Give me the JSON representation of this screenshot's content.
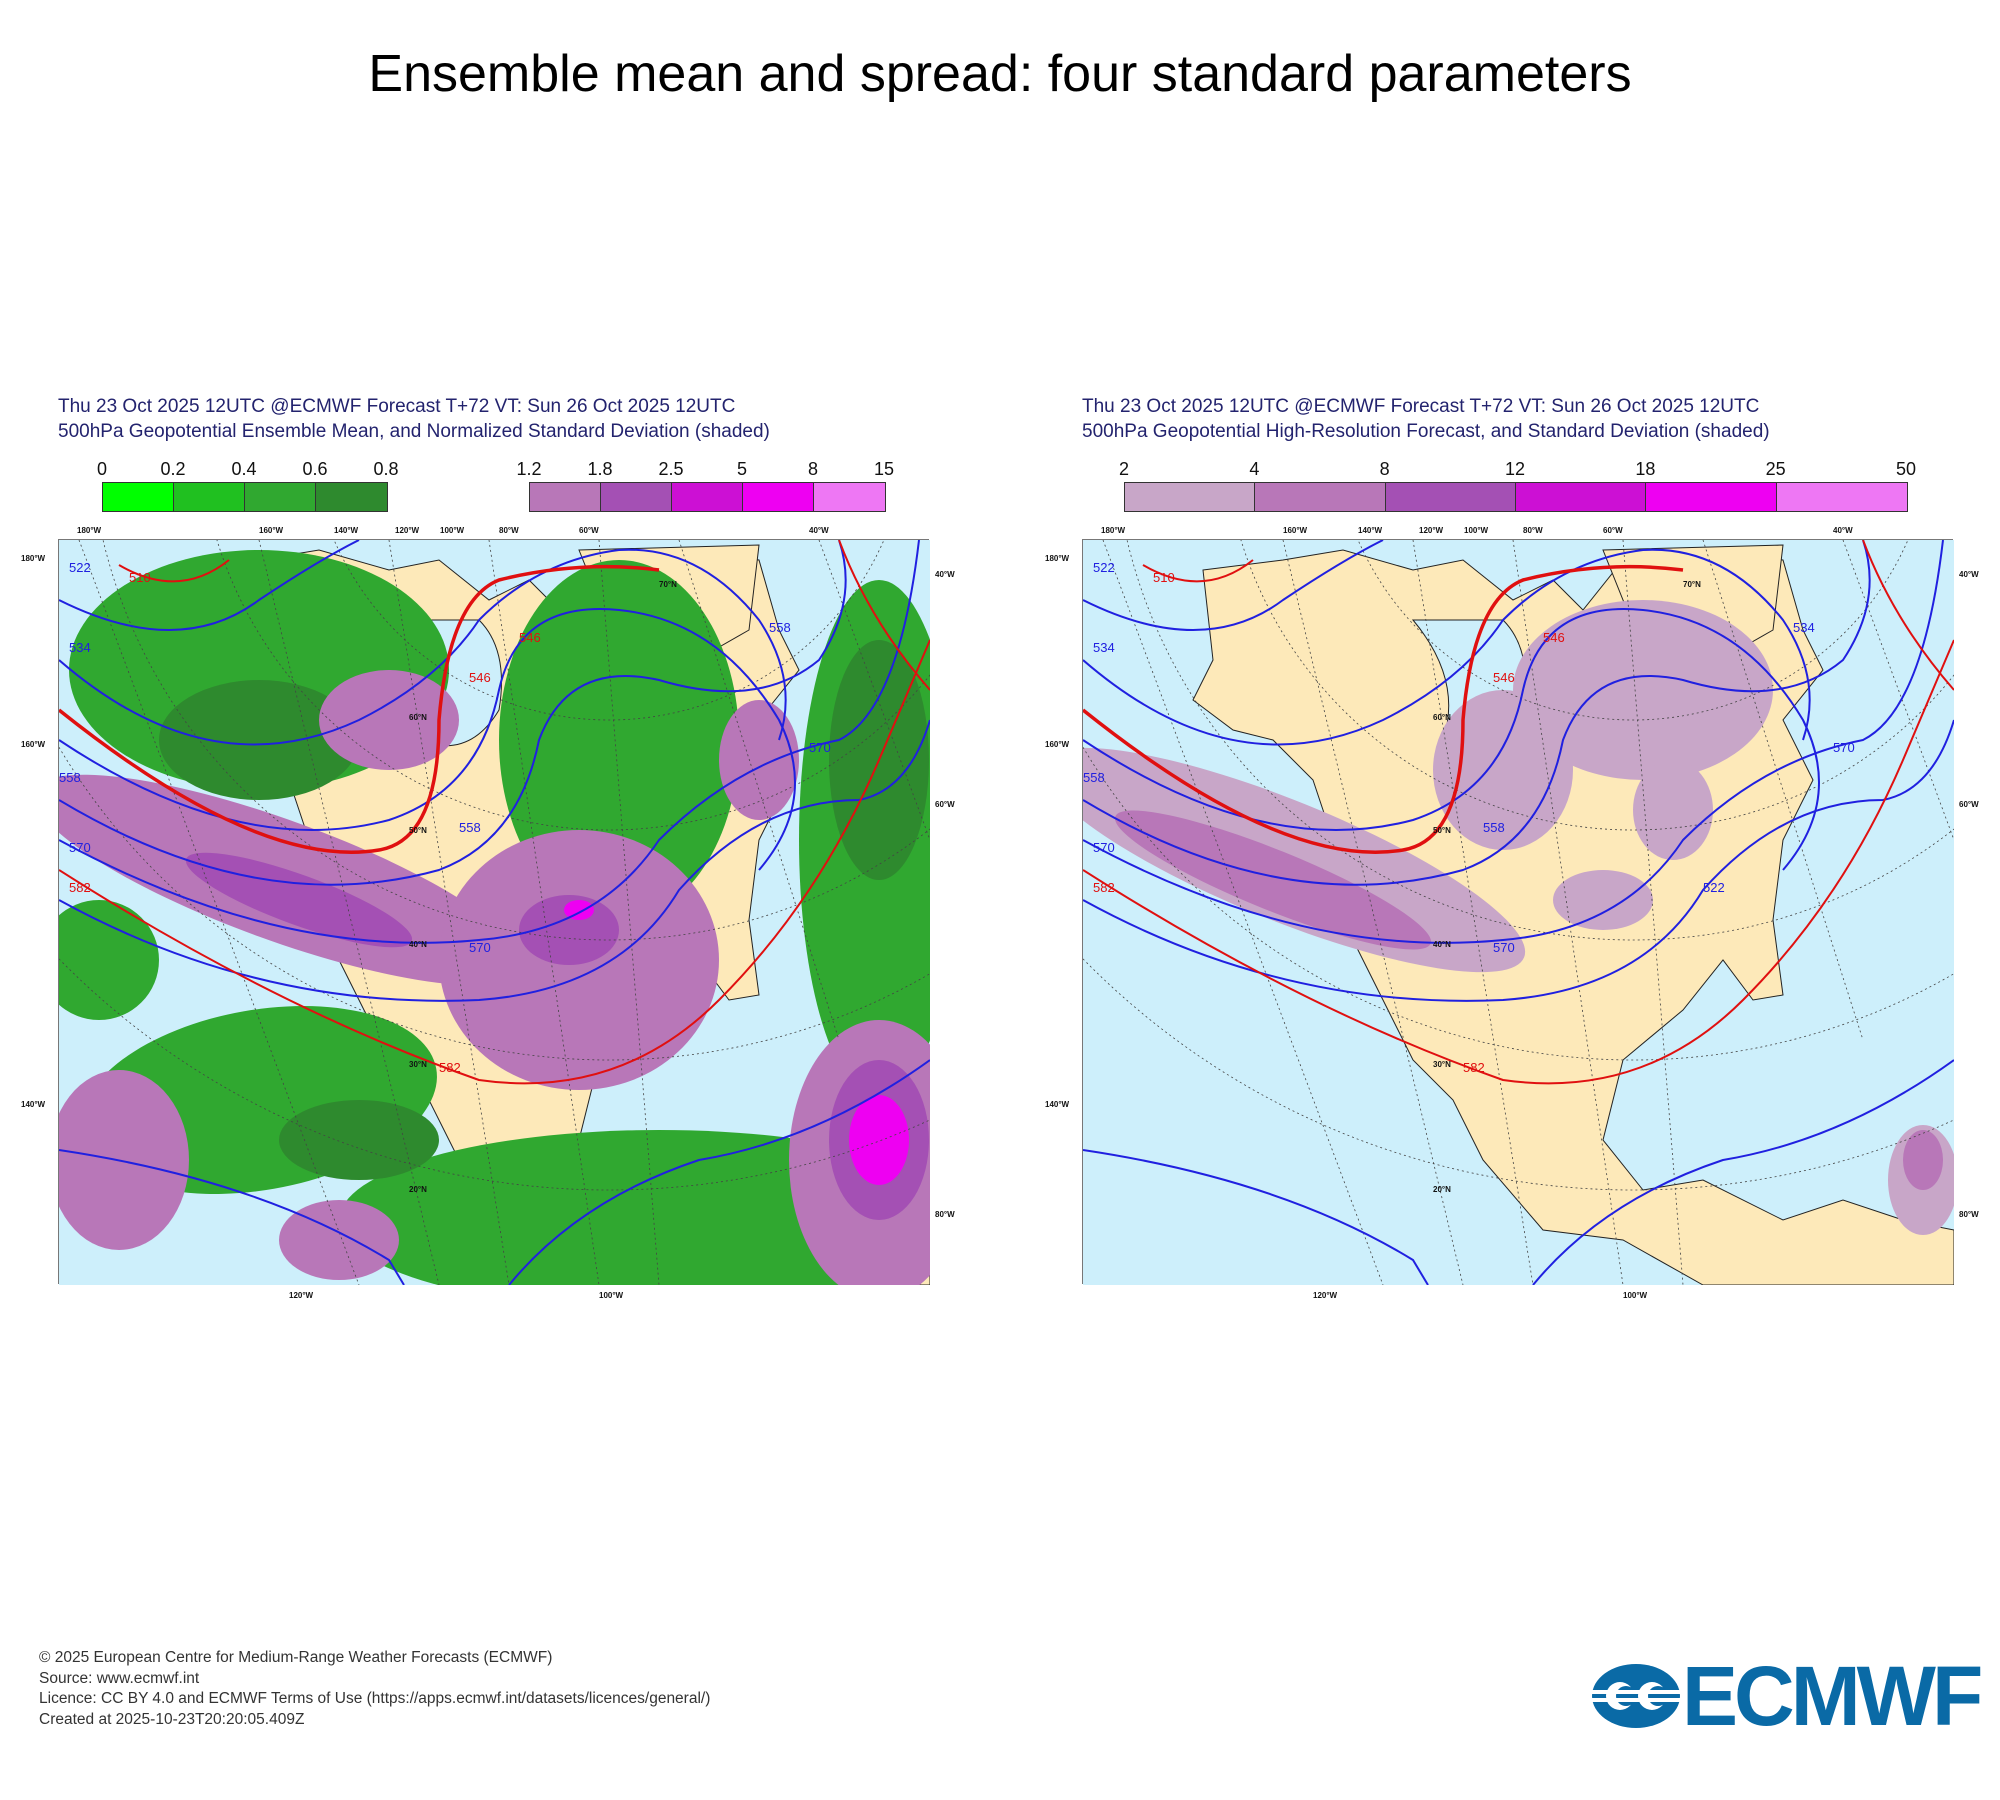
{
  "title": "Ensemble mean and spread: four standard parameters",
  "panels": [
    {
      "header_line1": "Thu 23 Oct 2025 12UTC @ECMWF Forecast T+72 VT: Sun 26 Oct 2025 12UTC",
      "header_line2": "500hPa Geopotential Ensemble Mean, and Normalized Standard Deviation (shaded)",
      "colorbars": [
        {
          "ticks": [
            "0",
            "0.2",
            "0.4",
            "0.6",
            "0.8"
          ],
          "colors": [
            "#00ff00",
            "#20c020",
            "#30a830",
            "#2e8a2e"
          ]
        },
        {
          "ticks": [
            "1.2",
            "1.8",
            "2.5",
            "5",
            "8",
            "15"
          ],
          "colors": [
            "#b877b8",
            "#a450b4",
            "#cc10d4",
            "#ee00f2",
            "#ee77f4"
          ]
        }
      ],
      "contour_labels": [
        "510",
        "522",
        "534",
        "546",
        "558",
        "570",
        "582",
        "546",
        "558",
        "570",
        "582",
        "570",
        "558"
      ]
    },
    {
      "header_line1": "Thu 23 Oct 2025 12UTC @ECMWF Forecast T+72 VT: Sun 26 Oct 2025 12UTC",
      "header_line2": "500hPa Geopotential High-Resolution Forecast, and Standard Deviation (shaded)",
      "colorbars": [
        {
          "ticks": [
            "2",
            "4",
            "8",
            "12",
            "18",
            "25",
            "50"
          ],
          "colors": [
            "#c8a6c8",
            "#b877b8",
            "#a450b4",
            "#cc10d4",
            "#ee00f2",
            "#ee77f4"
          ]
        }
      ],
      "contour_labels": [
        "510",
        "522",
        "534",
        "546",
        "558",
        "570",
        "582",
        "546",
        "558",
        "570",
        "582",
        "570",
        "534",
        "522"
      ]
    }
  ],
  "map_labels": {
    "top": [
      "180°W",
      "160°W",
      "140°W",
      "120°W",
      "100°W",
      "80°W",
      "60°W",
      "40°W"
    ],
    "left": [
      "180°W",
      "160°W",
      "140°W"
    ],
    "right": [
      "40°W",
      "60°W",
      "80°W"
    ],
    "bottom": [
      "120°W",
      "100°W"
    ],
    "lat": [
      "70°N",
      "60°N",
      "50°N",
      "40°N",
      "30°N",
      "20°N"
    ]
  },
  "colors": {
    "ocean": "#cdeffb",
    "land": "#fde9b9",
    "contour_blue": "#2020e0",
    "contour_red": "#e01010",
    "logo": "#0a6aa6"
  },
  "footer": {
    "line1": "© 2025 European Centre for Medium-Range Weather Forecasts (ECMWF)",
    "line2": "Source: www.ecmwf.int",
    "line3": "Licence: CC BY 4.0 and ECMWF Terms of Use (https://apps.ecmwf.int/datasets/licences/general/)",
    "line4": "Created at 2025-10-23T20:20:05.409Z"
  },
  "logo_text": "ECMWF",
  "chart_data": [
    {
      "type": "heatmap",
      "title": "500hPa Geopotential Ensemble Mean, and Normalized Standard Deviation (shaded)",
      "legend_levels": [
        0,
        0.2,
        0.4,
        0.6,
        0.8,
        1.2,
        1.8,
        2.5,
        5,
        8,
        15
      ],
      "contour_levels_dam": [
        510,
        522,
        534,
        546,
        558,
        570,
        582
      ]
    },
    {
      "type": "heatmap",
      "title": "500hPa Geopotential High-Resolution Forecast, and Standard Deviation (shaded)",
      "legend_levels": [
        2,
        4,
        8,
        12,
        18,
        25,
        50
      ],
      "contour_levels_dam": [
        510,
        522,
        534,
        546,
        558,
        570,
        582
      ]
    }
  ]
}
